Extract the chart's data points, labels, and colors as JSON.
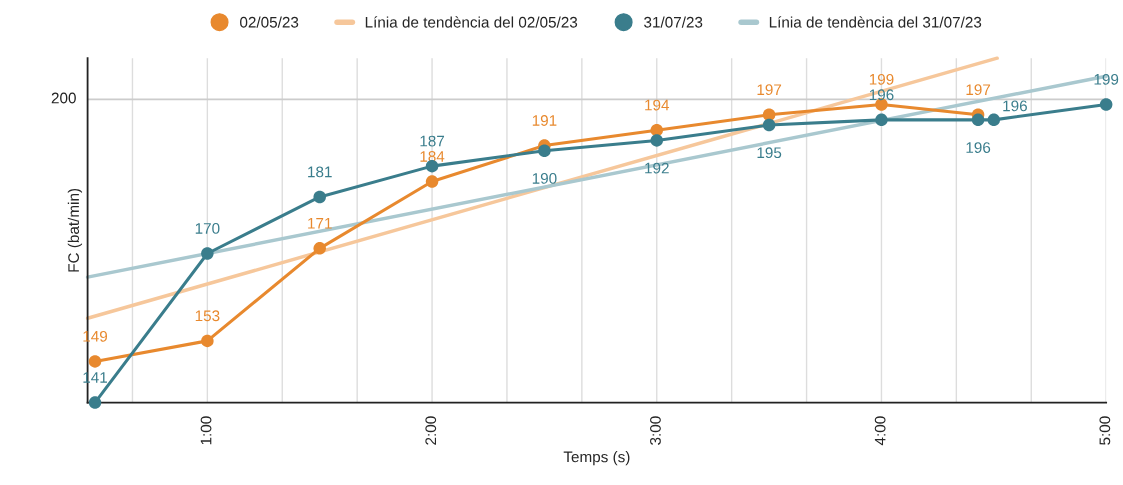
{
  "chart_data": {
    "type": "line",
    "xlabel": "Temps (s)",
    "ylabel": "FC (bat/min)",
    "xlim": [
      0.467,
      5.0
    ],
    "ylim": [
      141,
      208
    ],
    "ref_lines": [
      {
        "axis": "y",
        "value": 200,
        "label": "200"
      }
    ],
    "xticks": [
      {
        "value": 0.6667,
        "label": null
      },
      {
        "value": 1,
        "label": "1:00"
      },
      {
        "value": 1.3333,
        "label": null
      },
      {
        "value": 1.6667,
        "label": null
      },
      {
        "value": 2,
        "label": "2:00"
      },
      {
        "value": 2.3333,
        "label": null
      },
      {
        "value": 2.6667,
        "label": null
      },
      {
        "value": 3,
        "label": "3:00"
      },
      {
        "value": 3.3333,
        "label": null
      },
      {
        "value": 3.6667,
        "label": null
      },
      {
        "value": 4,
        "label": "4:00"
      },
      {
        "value": 4.3333,
        "label": null
      },
      {
        "value": 4.6667,
        "label": null
      },
      {
        "value": 5,
        "label": "5:00"
      }
    ],
    "grid": true,
    "legend": "top",
    "marker": "circle",
    "line_style": "solid",
    "series": [
      {
        "name": "02/05/23",
        "color": "#e8892e",
        "data_labels": true,
        "x": [
          0.5,
          1,
          1.5,
          2,
          2.5,
          3,
          3.5,
          4,
          4.43
        ],
        "values": [
          149,
          153,
          171,
          184,
          191,
          194,
          197,
          199,
          197
        ]
      },
      {
        "name": "Línia de tendència del 02/05/23",
        "color": "#f6c79b",
        "marker": "none",
        "x": [
          0.467,
          4.515
        ],
        "values": [
          157.4,
          208
        ]
      },
      {
        "name": "31/07/23",
        "color": "#3a7d8c",
        "data_labels": true,
        "x": [
          0.5,
          1,
          1.5,
          2,
          2.5,
          3,
          3.5,
          4,
          4.43,
          4.5,
          5
        ],
        "values": [
          141,
          170,
          181,
          187,
          190,
          192,
          195,
          196,
          196,
          196,
          199
        ]
      },
      {
        "name": "Línia de tendència del 31/07/23",
        "color": "#a9c8cf",
        "marker": "none",
        "x": [
          0.467,
          5.0
        ],
        "values": [
          165.4,
          204.5
        ]
      }
    ]
  }
}
